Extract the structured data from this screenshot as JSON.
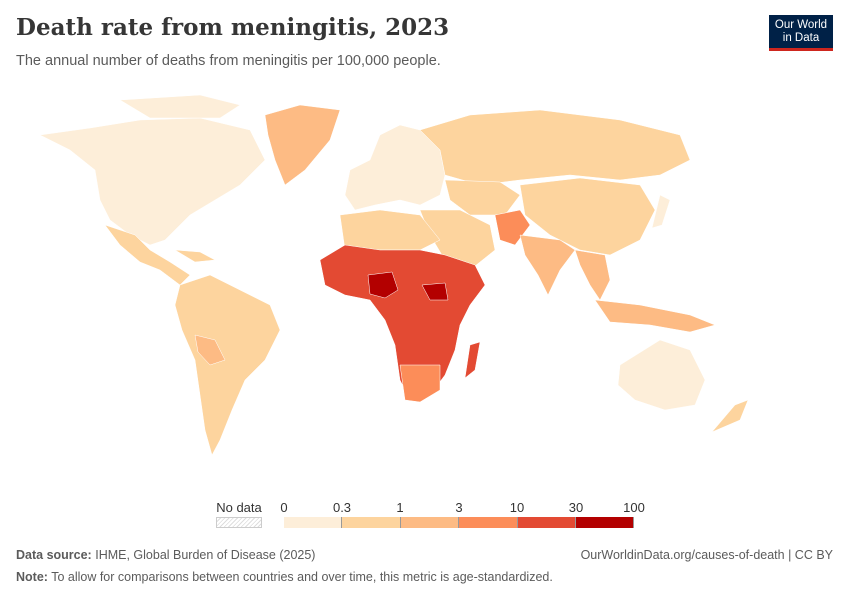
{
  "header": {
    "title": "Death rate from meningitis, 2023",
    "subtitle": "The annual number of deaths from meningitis per 100,000 people.",
    "logo": "Our World in Data"
  },
  "legend": {
    "no_data_label": "No data",
    "ticks": [
      "0",
      "0.3",
      "1",
      "3",
      "10",
      "30",
      "100"
    ],
    "colors": [
      "#fdeed9",
      "#fdd49e",
      "#fdbb84",
      "#fc8d59",
      "#e34a33",
      "#b30000"
    ],
    "no_data_color": "#dddddd"
  },
  "footer": {
    "source_label": "Data source:",
    "source": "IHME, Global Burden of Disease (2025)",
    "url": "OurWorldinData.org/causes-of-death | CC BY",
    "note_label": "Note:",
    "note": "To allow for comparisons between countries and over time, this metric is age-standardized."
  }
}
